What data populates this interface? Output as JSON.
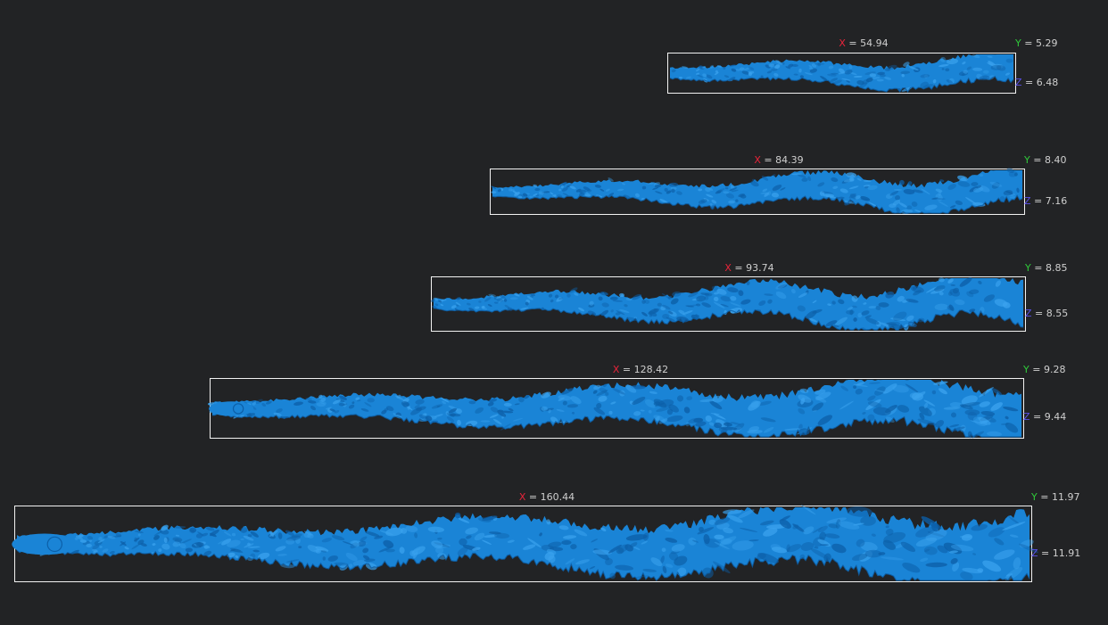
{
  "colors": {
    "background": "#222325",
    "mesh": "#1a84d6",
    "mesh_shadow": "#0c5fa8",
    "mesh_highlight": "#3aa2ee",
    "bbox": "#f2f2f2",
    "axis_x": "#e8243a",
    "axis_y": "#2fc93a",
    "axis_z": "#5a4fe6",
    "label_text": "#cfcfcf"
  },
  "specimens": [
    {
      "x": {
        "axis": "X",
        "sep": " = ",
        "value": "54.94"
      },
      "y": {
        "axis": "Y",
        "sep": " = ",
        "value": "5.29"
      },
      "z": {
        "axis": "Z",
        "sep": " = ",
        "value": "6.48"
      }
    },
    {
      "x": {
        "axis": "X",
        "sep": " = ",
        "value": "84.39"
      },
      "y": {
        "axis": "Y",
        "sep": " = ",
        "value": "8.40"
      },
      "z": {
        "axis": "Z",
        "sep": " = ",
        "value": "7.16"
      }
    },
    {
      "x": {
        "axis": "X",
        "sep": " = ",
        "value": "93.74"
      },
      "y": {
        "axis": "Y",
        "sep": " = ",
        "value": "8.85"
      },
      "z": {
        "axis": "Z",
        "sep": " = ",
        "value": "8.55"
      }
    },
    {
      "x": {
        "axis": "X",
        "sep": " = ",
        "value": "128.42"
      },
      "y": {
        "axis": "Y",
        "sep": " = ",
        "value": "9.28"
      },
      "z": {
        "axis": "Z",
        "sep": " = ",
        "value": "9.44"
      }
    },
    {
      "x": {
        "axis": "X",
        "sep": " = ",
        "value": "160.44"
      },
      "y": {
        "axis": "Y",
        "sep": " = ",
        "value": "11.97"
      },
      "z": {
        "axis": "Z",
        "sep": " = ",
        "value": "11.91"
      }
    }
  ]
}
